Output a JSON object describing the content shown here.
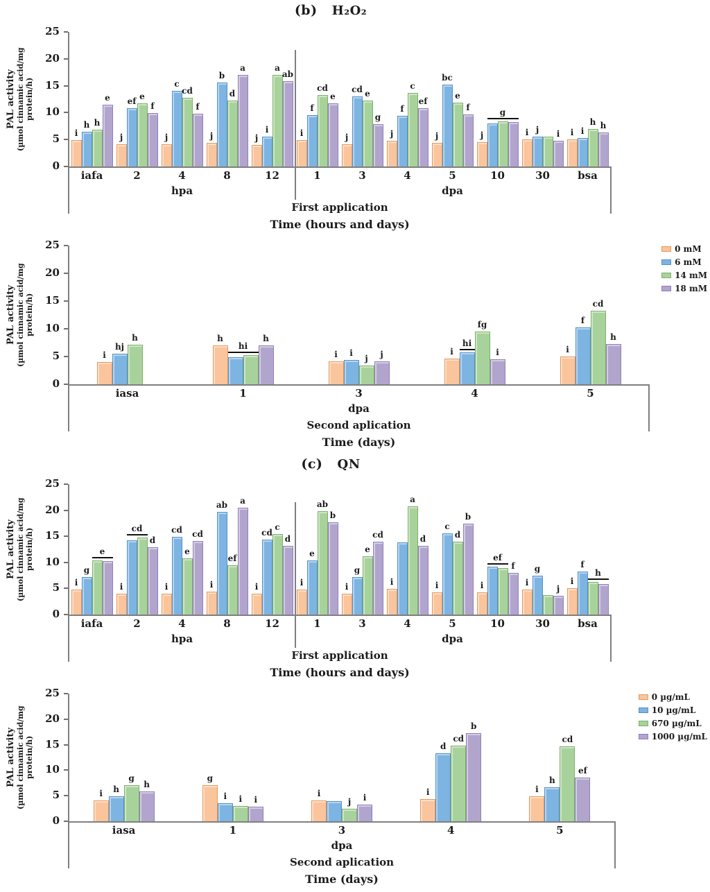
{
  "colors": {
    "orange": "#FAC49C",
    "orange_border": "#E39A5D",
    "blue": "#7DB4E2",
    "blue_border": "#5590C8",
    "green": "#A8D29B",
    "green_border": "#7CB069",
    "purple": "#B2A5CD",
    "purple_border": "#8F7EB9",
    "axis": "#7F7F7F",
    "text": "#1B1B1B"
  },
  "chart_data": {
    "type": "bar",
    "charts": [
      {
        "id": "b1",
        "panel_label": "(b)",
        "panel_title": "H₂O₂",
        "ylabel_line1": "PAL activity",
        "ylabel_line2": "(µmol cinnamic acid/mg protein/h)",
        "ymax": 25,
        "yticks": [
          25,
          20,
          15,
          10,
          5,
          0
        ],
        "sections": [
          {
            "label": "hpa",
            "categories": [
              "iafa",
              "2",
              "4",
              "8",
              "12"
            ]
          },
          {
            "label": "dpa",
            "categories": [
              "1",
              "3",
              "4",
              "5",
              "10",
              "30",
              "bsa"
            ]
          }
        ],
        "application_label": "First application",
        "xlabel": "Time (hours and days)",
        "legend": null,
        "series": [
          {
            "name": "0 mM",
            "color": "orange",
            "values": [
              4.9,
              4.1,
              4.1,
              4.4,
              4.0,
              4.9,
              4.1,
              4.8,
              4.4,
              4.5,
              5.0,
              5.0
            ],
            "labels": [
              "i",
              "j",
              "j",
              "j",
              "j",
              "i",
              "j",
              "j",
              "j",
              "j",
              "i",
              "i"
            ]
          },
          {
            "name": "6 mM",
            "color": "blue",
            "values": [
              6.5,
              10.8,
              14.0,
              15.6,
              5.5,
              9.5,
              13.0,
              9.4,
              15.2,
              8.0,
              5.6,
              5.3
            ],
            "labels": [
              "h",
              "ef",
              "c",
              "b",
              "i",
              "f",
              "cd",
              "f",
              "bc",
              "",
              "j",
              "i"
            ]
          },
          {
            "name": "14 mM",
            "color": "green",
            "values": [
              6.8,
              11.7,
              12.8,
              12.3,
              17.0,
              13.3,
              12.2,
              13.7,
              11.9,
              8.4,
              5.6,
              6.9
            ],
            "labels": [
              "h",
              "e",
              "cd",
              "d",
              "a",
              "cd",
              "e",
              "c",
              "e",
              "",
              "",
              "h"
            ]
          },
          {
            "name": "18 mM",
            "color": "purple",
            "values": [
              11.5,
              9.9,
              9.8,
              17.0,
              15.9,
              11.7,
              7.8,
              10.8,
              9.7,
              8.2,
              4.8,
              6.3
            ],
            "labels": [
              "e",
              "f",
              "f",
              "a",
              "ab",
              "e",
              "g",
              "ef",
              "f",
              "",
              "i",
              "h"
            ]
          }
        ],
        "span_labels": [
          {
            "cat": 9,
            "text": "g",
            "from": 1,
            "to": 3,
            "underline": true
          }
        ]
      },
      {
        "id": "b2",
        "panel_label": null,
        "panel_title": null,
        "ylabel_line1": "PAL activity",
        "ylabel_line2": "(µmol cinnamic acid/mg protein/h)",
        "ymax": 25,
        "yticks": [
          25,
          20,
          15,
          10,
          5,
          0
        ],
        "sections": [
          {
            "label": "dpa",
            "categories": [
              "iasa",
              "1",
              "3",
              "4",
              "5"
            ]
          }
        ],
        "application_label": "Second aplication",
        "xlabel": "Time (days)",
        "legend": {
          "items": [
            {
              "label": "0 mM",
              "color": "orange"
            },
            {
              "label": "6 mM",
              "color": "blue"
            },
            {
              "label": "14 mM",
              "color": "green"
            },
            {
              "label": "18 mM",
              "color": "purple"
            }
          ]
        },
        "series": [
          {
            "name": "0 mM",
            "color": "orange",
            "values": [
              4.0,
              7.0,
              4.1,
              4.6,
              5.0
            ],
            "labels": [
              "i",
              "h",
              "i",
              "i",
              "i"
            ]
          },
          {
            "name": "6 mM",
            "color": "blue",
            "values": [
              5.5,
              4.9,
              4.4,
              5.8,
              10.3
            ],
            "labels": [
              "hj",
              "",
              "i",
              "",
              "f"
            ]
          },
          {
            "name": "14 mM",
            "color": "green",
            "values": [
              7.1,
              5.2,
              3.4,
              9.5,
              13.2
            ],
            "labels": [
              "h",
              "",
              "j",
              "fg",
              "cd"
            ]
          },
          {
            "name": "18 mM",
            "color": "purple",
            "values": [
              null,
              7.0,
              4.1,
              4.5,
              7.2
            ],
            "labels": [
              "",
              "h",
              "j",
              "i",
              "h"
            ]
          }
        ],
        "span_labels": [
          {
            "cat": 1,
            "text": "hi",
            "from": 1,
            "to": 2,
            "underline": true
          },
          {
            "cat": 3,
            "text": "hi",
            "from": 1,
            "to": 1,
            "underline": true
          }
        ]
      },
      {
        "id": "c1",
        "panel_label": "(c)",
        "panel_title": "QN",
        "ylabel_line1": "PAL activity",
        "ylabel_line2": "(µmol cinnamic acid/mg protein/h)",
        "ymax": 25,
        "yticks": [
          25,
          20,
          15,
          10,
          5,
          0
        ],
        "sections": [
          {
            "label": "hpa",
            "categories": [
              "iafa",
              "2",
              "4",
              "8",
              "12"
            ]
          },
          {
            "label": "dpa",
            "categories": [
              "1",
              "3",
              "4",
              "5",
              "10",
              "30",
              "bsa"
            ]
          }
        ],
        "application_label": "First application",
        "xlabel": "Time (hours and days)",
        "legend": null,
        "series": [
          {
            "name": "0 µg/mL",
            "color": "orange",
            "values": [
              4.8,
              4.0,
              4.0,
              4.4,
              4.0,
              4.8,
              4.0,
              4.9,
              4.2,
              4.2,
              4.8,
              5.0
            ],
            "labels": [
              "i",
              "i",
              "i",
              "i",
              "i",
              "i",
              "i",
              "i",
              "i",
              "i",
              "i",
              "i"
            ]
          },
          {
            "name": "10 µg/mL",
            "color": "blue",
            "values": [
              7.2,
              14.2,
              14.9,
              19.7,
              14.4,
              10.4,
              7.2,
              13.8,
              15.6,
              9.2,
              7.4,
              8.2
            ],
            "labels": [
              "g",
              "",
              "cd",
              "ab",
              "cd",
              "e",
              "g",
              "",
              "c",
              "",
              "g",
              "f"
            ]
          },
          {
            "name": "670 µg/mL",
            "color": "green",
            "values": [
              10.4,
              14.7,
              10.8,
              9.4,
              15.4,
              19.8,
              11.2,
              20.8,
              13.9,
              8.9,
              3.7,
              6.2
            ],
            "labels": [
              "",
              "",
              "e",
              "ef",
              "c",
              "ab",
              "e",
              "a",
              "d",
              "",
              "",
              ""
            ]
          },
          {
            "name": "1000 µg/mL",
            "color": "purple",
            "values": [
              10.3,
              12.9,
              14.1,
              20.5,
              13.1,
              17.7,
              13.9,
              13.2,
              17.4,
              8.0,
              3.6,
              5.9
            ],
            "labels": [
              "",
              "d",
              "cd",
              "a",
              "d",
              "b",
              "cd",
              "d",
              "b",
              "f",
              "j",
              ""
            ]
          }
        ],
        "span_labels": [
          {
            "cat": 0,
            "text": "e",
            "from": 2,
            "to": 3,
            "underline": true
          },
          {
            "cat": 1,
            "text": "cd",
            "from": 1,
            "to": 2,
            "underline": true
          },
          {
            "cat": 9,
            "text": "ef",
            "from": 1,
            "to": 2,
            "underline": true
          },
          {
            "cat": 11,
            "text": "h",
            "from": 2,
            "to": 3,
            "underline": true
          }
        ]
      },
      {
        "id": "c2",
        "panel_label": null,
        "panel_title": null,
        "ylabel_line1": "PAL activity",
        "ylabel_line2": "(µmol cinnamic acid/mg protein/h)",
        "ymax": 25,
        "yticks": [
          25,
          20,
          15,
          10,
          5,
          0
        ],
        "sections": [
          {
            "label": "dpa",
            "categories": [
              "iasa",
              "1",
              "3",
              "4",
              "5"
            ]
          }
        ],
        "application_label": "Second aplication",
        "xlabel": "Time (days)",
        "legend": {
          "items": [
            {
              "label": "0 µg/mL",
              "color": "orange"
            },
            {
              "label": "10 µg/mL",
              "color": "blue"
            },
            {
              "label": "670 µg/mL",
              "color": "green"
            },
            {
              "label": "1000 µg/mL",
              "color": "purple"
            }
          ]
        },
        "series": [
          {
            "name": "0 µg/mL",
            "color": "orange",
            "values": [
              4.1,
              7.0,
              4.1,
              4.4,
              4.9
            ],
            "labels": [
              "i",
              "g",
              "i",
              "i",
              "i"
            ]
          },
          {
            "name": "10 µg/mL",
            "color": "blue",
            "values": [
              4.9,
              3.6,
              4.0,
              13.3,
              6.6
            ],
            "labels": [
              "h",
              "i",
              "",
              "d",
              "h"
            ]
          },
          {
            "name": "670 µg/mL",
            "color": "green",
            "values": [
              7.1,
              3.0,
              2.5,
              14.8,
              14.7
            ],
            "labels": [
              "g",
              "i",
              "j",
              "cd",
              "cd"
            ]
          },
          {
            "name": "1000 µg/mL",
            "color": "purple",
            "values": [
              5.8,
              2.8,
              3.2,
              17.3,
              8.6
            ],
            "labels": [
              "h",
              "i",
              "i",
              "b",
              "ef"
            ]
          }
        ],
        "span_labels": []
      }
    ]
  }
}
